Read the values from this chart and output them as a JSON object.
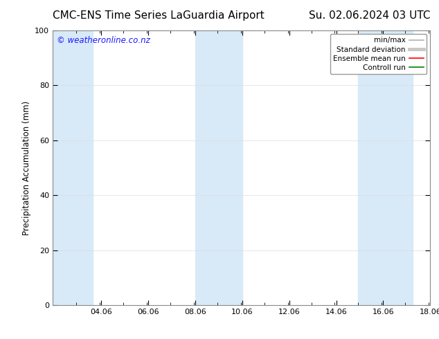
{
  "title_left": "CMC-ENS Time Series LaGuardia Airport",
  "title_right": "Su. 02.06.2024 03 UTC",
  "ylabel": "Precipitation Accumulation (mm)",
  "ylim": [
    0,
    100
  ],
  "yticks": [
    0,
    20,
    40,
    60,
    80,
    100
  ],
  "xlim_start": 2.0,
  "xlim_end": 18.06,
  "xtick_labels": [
    "04.06",
    "06.06",
    "08.06",
    "10.06",
    "12.06",
    "14.06",
    "16.06",
    "18.06"
  ],
  "xtick_positions": [
    4.06,
    6.06,
    8.06,
    10.06,
    12.06,
    14.06,
    16.06,
    18.06
  ],
  "watermark_text": "© weatheronline.co.nz",
  "watermark_color": "#1a1aff",
  "background_color": "#ffffff",
  "plot_bg_color": "#ffffff",
  "shaded_bands": [
    {
      "x_start": 2.0,
      "x_end": 3.7,
      "color": "#d8eaf8"
    },
    {
      "x_start": 8.06,
      "x_end": 10.06,
      "color": "#d8eaf8"
    },
    {
      "x_start": 15.0,
      "x_end": 17.3,
      "color": "#d8eaf8"
    }
  ],
  "legend_items": [
    {
      "label": "min/max",
      "color": "#b0b0b0",
      "lw": 1.2,
      "style": "solid"
    },
    {
      "label": "Standard deviation",
      "color": "#c8c8c8",
      "lw": 3.5,
      "style": "solid"
    },
    {
      "label": "Ensemble mean run",
      "color": "#ff0000",
      "lw": 1.2,
      "style": "solid"
    },
    {
      "label": "Controll run",
      "color": "#008000",
      "lw": 1.2,
      "style": "solid"
    }
  ],
  "title_fontsize": 11,
  "axis_label_fontsize": 8.5,
  "tick_fontsize": 8,
  "legend_fontsize": 7.5,
  "watermark_fontsize": 8.5
}
